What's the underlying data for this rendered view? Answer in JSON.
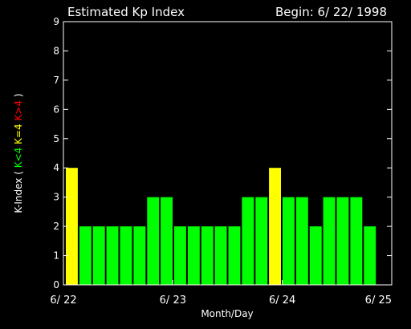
{
  "chart_data": {
    "type": "bar",
    "title": "Estimated Kp Index",
    "begin_label": "Begin: 6/ 22/ 1998",
    "xlabel": "Month/Day",
    "ylabel": {
      "prefix": "K-Index ( ",
      "green": "K<4",
      "yellow": "K=4",
      "red": "K>4",
      "suffix": " )"
    },
    "ylim": [
      0,
      9
    ],
    "yticks": [
      "0",
      "1",
      "2",
      "3",
      "4",
      "5",
      "6",
      "7",
      "8",
      "9"
    ],
    "xticks": [
      "6/ 22",
      "6/ 23",
      "6/ 24",
      "6/ 25"
    ],
    "values": [
      4,
      2,
      2,
      2,
      2,
      2,
      3,
      3,
      2,
      2,
      2,
      2,
      2,
      3,
      3,
      4,
      3,
      3,
      2,
      3,
      3,
      3,
      2
    ],
    "colors": {
      "below": "#00ff00",
      "equal": "#ffff00",
      "above": "#ff0000",
      "background": "#000000",
      "foreground": "#ffffff"
    }
  }
}
